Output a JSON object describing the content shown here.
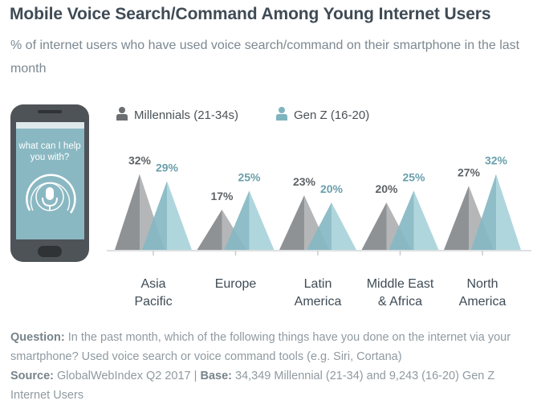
{
  "title": "Mobile Voice Search/Command Among Young Internet Users",
  "subtitle": "% of internet users who have used voice search/command on their smartphone in the last month",
  "phone": {
    "prompt": "what can I help you with?",
    "icons": [
      "microphone-icon"
    ]
  },
  "colors": {
    "millennials": "#a9abad",
    "genz": "#9fcbd2",
    "millennials_label": "#5e6366",
    "genz_label": "#6a9fab",
    "baseline": "#d3d6d8"
  },
  "chart_data": {
    "type": "bar",
    "mark_shape": "triangle",
    "categories": [
      "Asia Pacific",
      "Europe",
      "Latin America",
      "Middle East & Africa",
      "North America"
    ],
    "category_lines": [
      [
        "Asia",
        "Pacific"
      ],
      [
        "Europe"
      ],
      [
        "Latin",
        "America"
      ],
      [
        "Middle East",
        "& Africa"
      ],
      [
        "North",
        "America"
      ]
    ],
    "series": [
      {
        "name": "Millennials (21-34s)",
        "values": [
          32,
          17,
          23,
          20,
          27
        ],
        "labels": [
          "32%",
          "17%",
          "23%",
          "20%",
          "27%"
        ]
      },
      {
        "name": "Gen Z (16-20)",
        "values": [
          29,
          25,
          20,
          25,
          32
        ],
        "labels": [
          "29%",
          "25%",
          "20%",
          "25%",
          "32%"
        ]
      }
    ],
    "unit": "%",
    "legend_position": "top",
    "grid": false
  },
  "footer": {
    "question_label": "Question:",
    "question_text": "In the past month, which of the following things have you done on the internet via your smartphone? Used voice search or voice command tools (e.g. Siri, Cortana)",
    "source_label": "Source:",
    "source_text": "GlobalWebIndex Q2 2017",
    "separator": "|",
    "base_label": "Base:",
    "base_text": "34,349 Millennial (21-34) and 9,243 (16-20) Gen Z Internet Users"
  }
}
